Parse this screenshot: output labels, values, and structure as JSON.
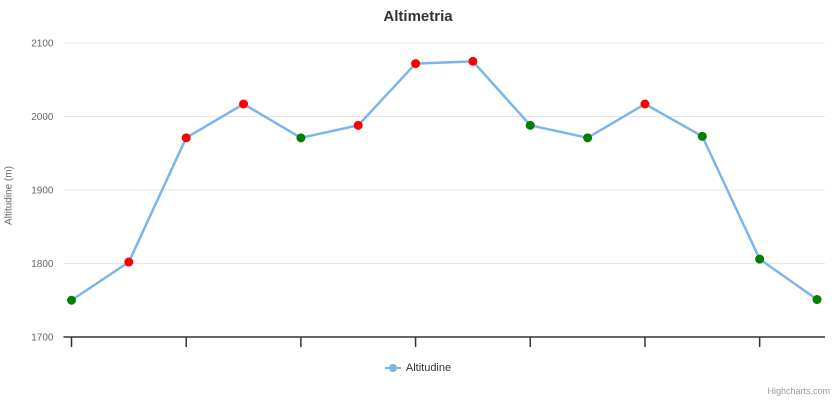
{
  "chart": {
    "title": "Altimetria",
    "y_axis_title": "Altitudine (m)",
    "legend_label": "Altitudine",
    "credits": "Highcharts.com"
  },
  "colors": {
    "line": "#7cb5ec",
    "ascent_marker": "#ff0000",
    "descent_marker": "#008000",
    "grid": "#e6e6e6",
    "axis": "#333333",
    "title_text": "#333333",
    "label_text": "#666666",
    "legend_text": "#333333",
    "credits_text": "#999999"
  },
  "chart_data": {
    "type": "line",
    "title": "Altimetria",
    "xlabel": "",
    "ylabel": "Altitudine (m)",
    "ylim": [
      1700,
      2100
    ],
    "y_ticks": [
      1700,
      1800,
      1900,
      2000,
      2100
    ],
    "grid": true,
    "legend_position": "bottom",
    "x_tick_positions": [
      0,
      2,
      4,
      6,
      8,
      10,
      12
    ],
    "x_tick_labels": [],
    "series": [
      {
        "name": "Altitudine",
        "x": [
          0,
          1,
          2,
          3,
          4,
          5,
          6,
          7,
          8,
          9,
          10,
          11,
          12,
          13
        ],
        "values": [
          1750,
          1802,
          1971,
          2017,
          1971,
          1988,
          2072,
          2075,
          1988,
          1971,
          2017,
          1973,
          1806,
          1751
        ],
        "marker_colors": [
          "#008000",
          "#ff0000",
          "#ff0000",
          "#ff0000",
          "#008000",
          "#ff0000",
          "#ff0000",
          "#ff0000",
          "#008000",
          "#008000",
          "#ff0000",
          "#008000",
          "#008000",
          "#008000"
        ]
      }
    ]
  }
}
